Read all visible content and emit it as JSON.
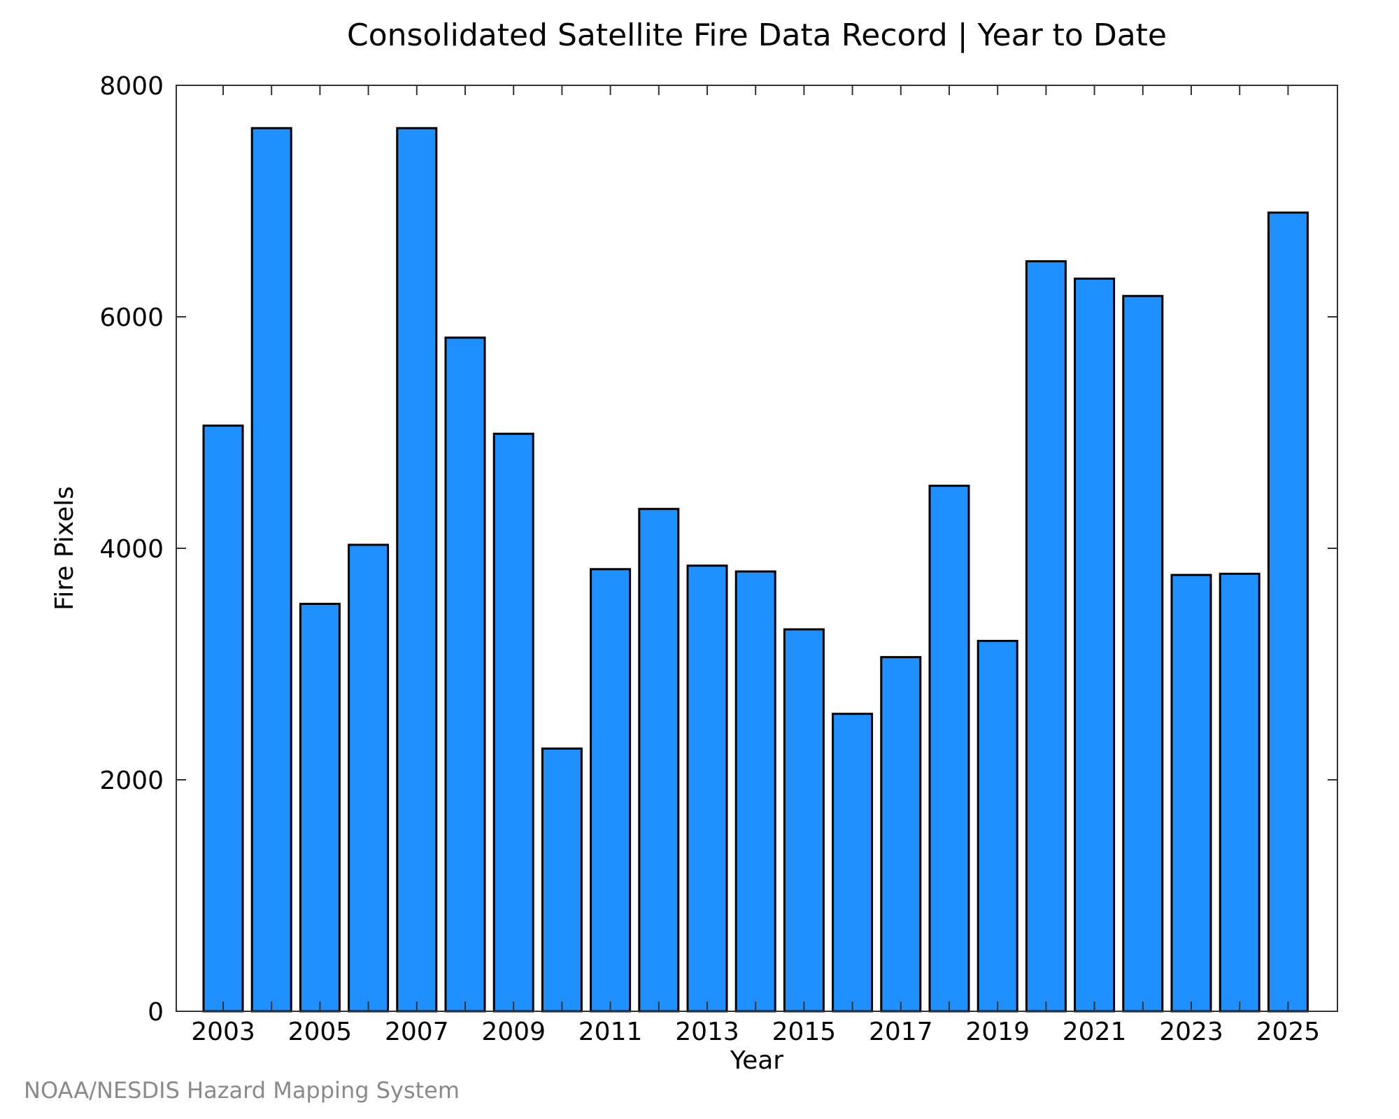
{
  "chart_data": {
    "type": "bar",
    "title": "Consolidated Satellite Fire Data Record | Year to Date",
    "xlabel": "Year",
    "ylabel": "Fire Pixels",
    "categories": [
      "2003",
      "2004",
      "2005",
      "2006",
      "2007",
      "2008",
      "2009",
      "2010",
      "2011",
      "2012",
      "2013",
      "2014",
      "2015",
      "2016",
      "2017",
      "2018",
      "2019",
      "2020",
      "2021",
      "2022",
      "2023",
      "2024",
      "2025"
    ],
    "x_tick_labels": [
      "2003",
      "2005",
      "2007",
      "2009",
      "2011",
      "2013",
      "2015",
      "2017",
      "2019",
      "2021",
      "2023",
      "2025"
    ],
    "values": [
      5060,
      7630,
      3520,
      4030,
      7630,
      5820,
      4990,
      2270,
      3820,
      4340,
      3850,
      3800,
      3300,
      2570,
      3060,
      4540,
      3200,
      6480,
      6330,
      6180,
      3770,
      3780,
      6900
    ],
    "y_ticks": [
      0,
      2000,
      4000,
      6000,
      8000
    ],
    "ylim": [
      0,
      8000
    ],
    "bar_color": "#1e90ff",
    "grid": false,
    "legend": "none"
  },
  "credit": "NOAA/NESDIS Hazard Mapping System"
}
